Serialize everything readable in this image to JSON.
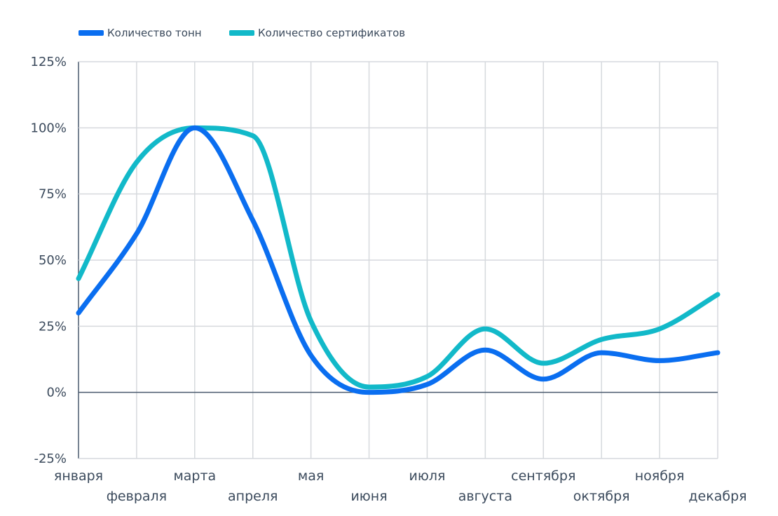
{
  "chart_data": {
    "type": "line",
    "title": "",
    "xlabel": "",
    "ylabel": "",
    "categories": [
      "января",
      "февраля",
      "марта",
      "апреля",
      "мая",
      "июня",
      "июля",
      "августа",
      "сентября",
      "октября",
      "ноября",
      "декабря"
    ],
    "y_ticks": [
      "125%",
      "100%",
      "75%",
      "50%",
      "25%",
      "0%",
      "-25%"
    ],
    "ylim": [
      -25,
      125
    ],
    "y_tick_values": [
      125,
      100,
      75,
      50,
      25,
      0,
      -25
    ],
    "grid": true,
    "legend_position": "top-left",
    "series": [
      {
        "name": "Количество тонн",
        "color": "#0a6ef0",
        "values": [
          30,
          60,
          100,
          65,
          14,
          0,
          3,
          16,
          5,
          15,
          12,
          15
        ]
      },
      {
        "name": "Количество сертификатов",
        "color": "#12b9c9",
        "values": [
          43,
          87,
          100,
          97,
          27,
          2,
          6,
          24,
          11,
          20,
          24,
          37
        ]
      }
    ]
  }
}
